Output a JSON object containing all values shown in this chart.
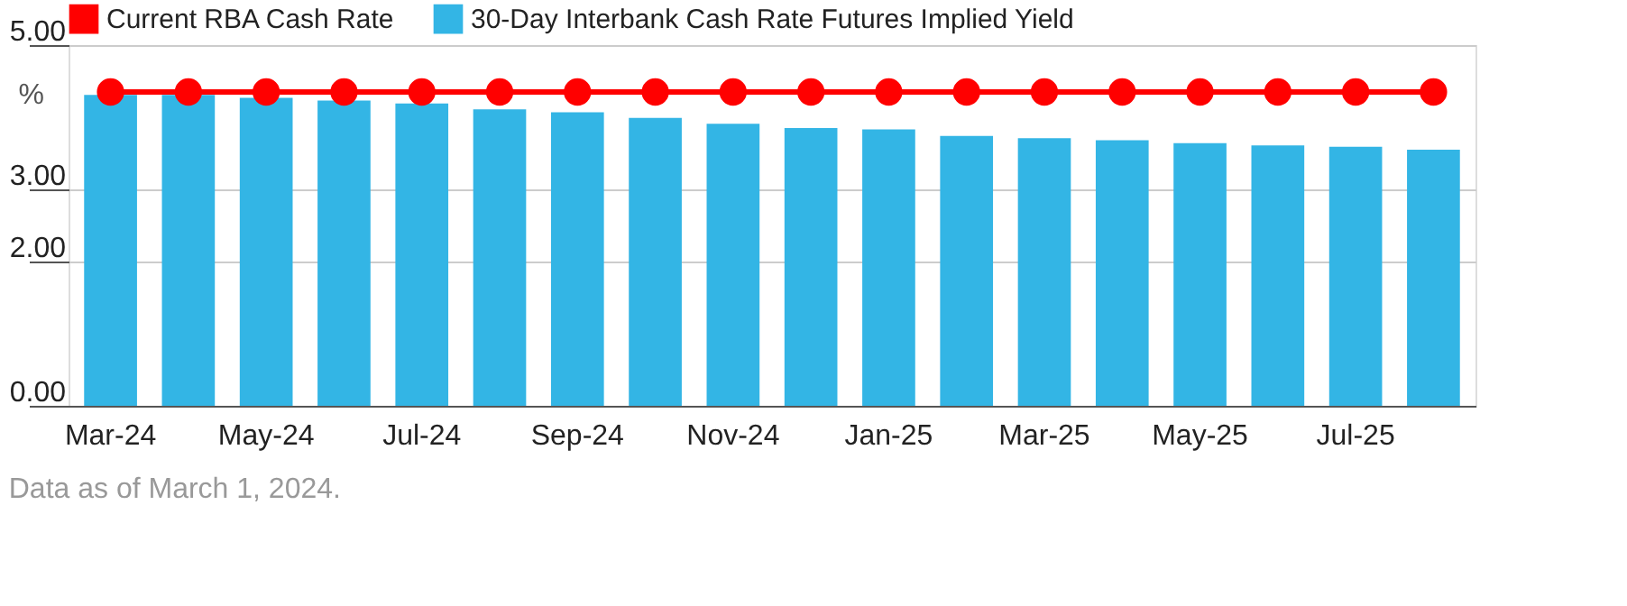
{
  "chart_data": {
    "type": "bar",
    "categories": [
      "Mar-24",
      null,
      "May-24",
      null,
      "Jul-24",
      null,
      "Sep-24",
      null,
      "Nov-24",
      null,
      "Jan-25",
      null,
      "Mar-25",
      null,
      "May-25",
      null,
      "Jul-25",
      null
    ],
    "series": [
      {
        "name": "Current RBA Cash Rate",
        "type": "line",
        "color": "#ff0000",
        "marker": "circle",
        "values": [
          4.35,
          4.35,
          4.35,
          4.35,
          4.35,
          4.35,
          4.35,
          4.35,
          4.35,
          4.35,
          4.35,
          4.35,
          4.35,
          4.35,
          4.35,
          4.35,
          4.35,
          4.35
        ]
      },
      {
        "name": "30-Day Interbank Cash Rate Futures Implied Yield",
        "color": "#33b5e5",
        "values": [
          4.31,
          4.31,
          4.27,
          4.23,
          4.19,
          4.11,
          4.07,
          3.99,
          3.91,
          3.85,
          3.83,
          3.74,
          3.71,
          3.68,
          3.64,
          3.61,
          3.59,
          3.55
        ]
      }
    ],
    "ylabel": "%",
    "ylim": [
      0,
      5
    ],
    "yticks": [
      {
        "value": 0,
        "label": "0.00"
      },
      {
        "value": 2,
        "label": "2.00"
      },
      {
        "value": 3,
        "label": "3.00"
      },
      {
        "value": 5,
        "label": "5.00"
      }
    ],
    "grid": "y",
    "legend": "top left",
    "annotations": [
      "Data as of March 1, 2024."
    ]
  }
}
